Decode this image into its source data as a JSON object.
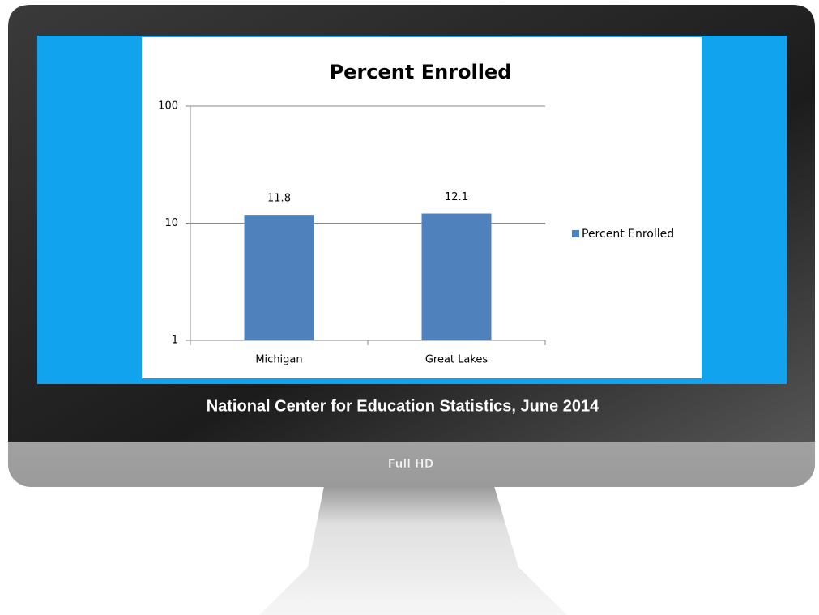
{
  "chart_data": {
    "type": "bar",
    "title": "Percent Enrolled",
    "categories": [
      "Michigan",
      "Great Lakes"
    ],
    "series": [
      {
        "name": "Percent Enrolled",
        "color": "#4f81bd",
        "values": [
          11.8,
          12.1
        ]
      }
    ],
    "ylim": [
      1,
      100
    ],
    "yticks": [
      1,
      10,
      100
    ],
    "log_scale": true,
    "grid": true,
    "legend": "right"
  },
  "caption": "National Center for Education Statistics, June 2014",
  "brand": "Full HD"
}
